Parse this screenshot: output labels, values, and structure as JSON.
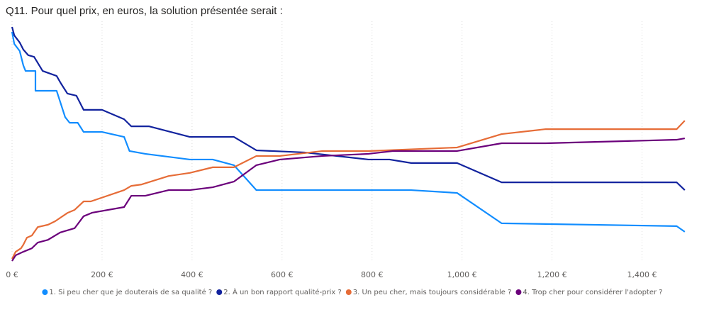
{
  "chart_data": {
    "type": "line",
    "title": "Q11. Pour quel prix, en euros, la solution présentée serait :",
    "xlim": [
      0,
      1500
    ],
    "ylim": [
      0,
      100
    ],
    "xticks": [
      {
        "value": 0,
        "label": "0 €"
      },
      {
        "value": 200,
        "label": "200 €"
      },
      {
        "value": 400,
        "label": "400 €"
      },
      {
        "value": 600,
        "label": "600 €"
      },
      {
        "value": 800,
        "label": "800 €"
      },
      {
        "value": 1000,
        "label": "1,000 €"
      },
      {
        "value": 1200,
        "label": "1,200 €"
      },
      {
        "value": 1400,
        "label": "1,400 €"
      }
    ],
    "grid": true,
    "legend": "bottom",
    "series": [
      {
        "name": "1. Si peu cher que je douterais de sa qualité ?",
        "color": "#118DFF",
        "x": [
          0,
          5,
          17,
          25,
          30,
          52,
          52,
          99,
          118,
          128,
          146,
          159,
          200,
          249,
          261,
          296,
          395,
          446,
          493,
          543,
          887,
          989,
          1088,
          1477,
          1495
        ],
        "values": [
          97.9,
          92.8,
          89.8,
          83.7,
          81.3,
          81.3,
          72.9,
          72.9,
          61.7,
          59.3,
          59.3,
          55.4,
          55.4,
          53.3,
          47.3,
          46.1,
          43.7,
          43.7,
          41.3,
          30.7,
          30.7,
          29.5,
          16.6,
          15.4,
          13
        ]
      },
      {
        "name": "2. À un bon rapport qualité-prix ?",
        "color": "#12239E",
        "x": [
          0,
          5,
          17,
          25,
          36,
          49,
          68,
          99,
          109,
          123,
          143,
          159,
          200,
          249,
          265,
          304,
          395,
          493,
          543,
          650,
          792,
          839,
          887,
          989,
          1088,
          1477,
          1495
        ],
        "values": [
          100,
          96.4,
          93.4,
          90.4,
          88,
          87.3,
          81.3,
          79.2,
          75.9,
          71.7,
          70.8,
          64.8,
          64.8,
          60.8,
          57.8,
          57.8,
          53.3,
          53.3,
          47.6,
          46.7,
          43.7,
          43.7,
          42.2,
          42.2,
          34,
          34,
          30.7
        ]
      },
      {
        "name": "3. Un peu cher, mais toujours considérable ?",
        "color": "#E66C37",
        "x": [
          0,
          8,
          20,
          25,
          33,
          44,
          57,
          80,
          96,
          123,
          139,
          159,
          175,
          249,
          265,
          288,
          348,
          395,
          446,
          493,
          543,
          595,
          690,
          792,
          989,
          1088,
          1186,
          1477,
          1495
        ],
        "values": [
          1.5,
          4.5,
          6,
          7.5,
          10.5,
          11.4,
          15,
          16,
          17.5,
          21,
          22.3,
          25.9,
          25.9,
          30.7,
          32.5,
          33.1,
          36.7,
          38,
          40.4,
          40.4,
          45.2,
          45.2,
          47.3,
          47.3,
          48.8,
          54.5,
          56.6,
          56.6,
          60.2
        ]
      },
      {
        "name": "4. Trop cher pour considérer l'adopter ?",
        "color": "#6B007B",
        "x": [
          0,
          8,
          25,
          44,
          57,
          80,
          107,
          139,
          159,
          178,
          249,
          265,
          296,
          348,
          395,
          446,
          493,
          543,
          595,
          690,
          792,
          847,
          989,
          1088,
          1186,
          1477,
          1495
        ],
        "values": [
          0.6,
          3,
          4.5,
          6,
          8.4,
          9.6,
          12.7,
          14.5,
          19.6,
          21.1,
          23.5,
          28.3,
          28.3,
          30.7,
          30.7,
          31.9,
          34.3,
          41.3,
          43.7,
          45.2,
          46.1,
          47.3,
          47.3,
          50.6,
          50.6,
          52.1,
          52.7
        ]
      }
    ]
  }
}
